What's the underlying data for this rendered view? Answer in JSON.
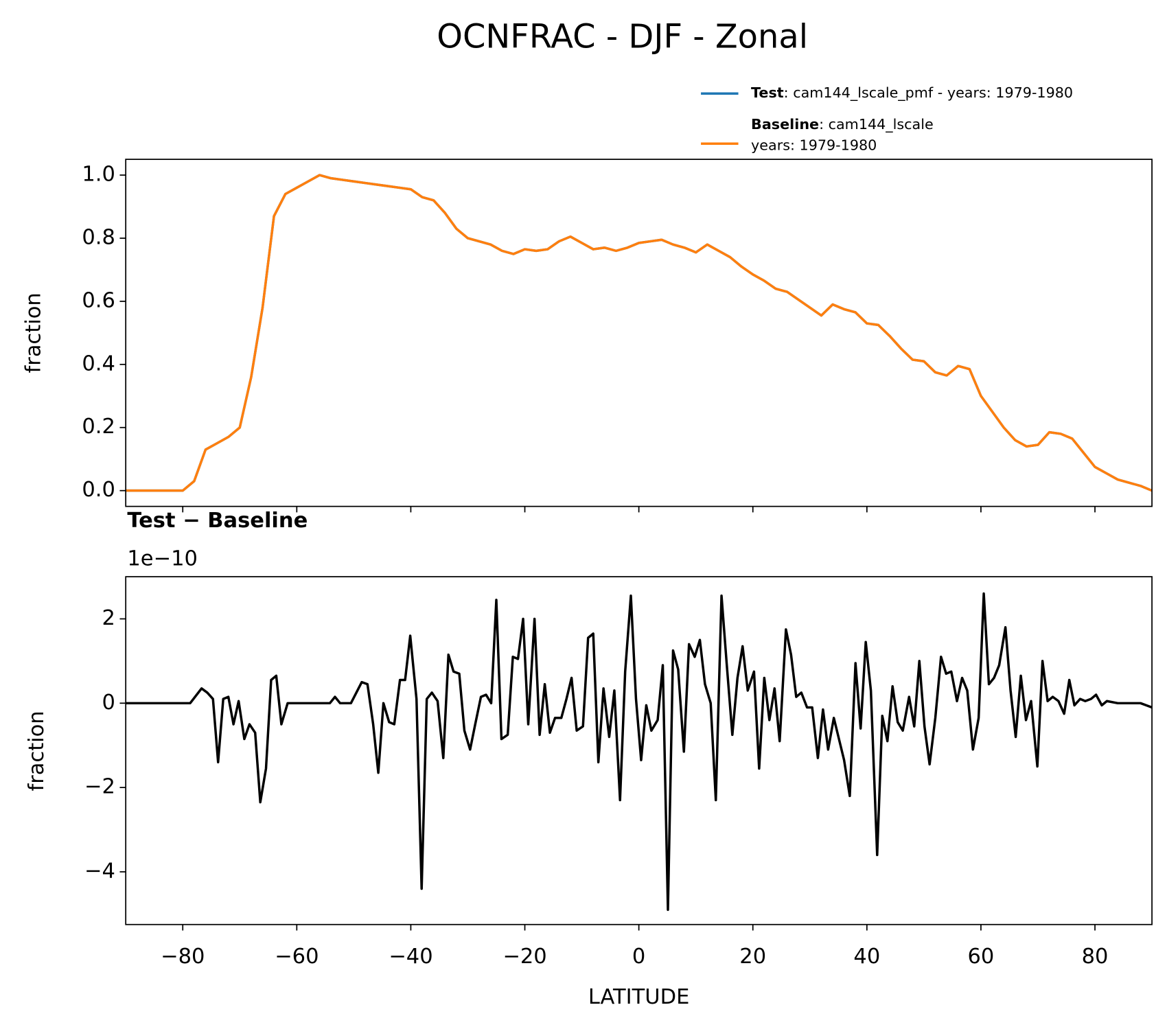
{
  "chart_data": [
    {
      "type": "line",
      "title": "OCNFRAC - DJF - Zonal",
      "ylabel": "fraction",
      "x": [
        -90,
        -88,
        -86,
        -84,
        -82,
        -80,
        -78,
        -76,
        -74,
        -72,
        -70,
        -68,
        -66,
        -64,
        -62,
        -60,
        -58,
        -56,
        -54,
        -52,
        -50,
        -48,
        -46,
        -44,
        -42,
        -40,
        -38,
        -36,
        -34,
        -32,
        -30,
        -28,
        -26,
        -24,
        -22,
        -20,
        -18,
        -16,
        -14,
        -12,
        -10,
        -8,
        -6,
        -4,
        -2,
        0,
        2,
        4,
        6,
        8,
        10,
        12,
        14,
        16,
        18,
        20,
        22,
        24,
        26,
        28,
        30,
        32,
        34,
        36,
        38,
        40,
        42,
        44,
        46,
        48,
        50,
        52,
        54,
        56,
        58,
        60,
        62,
        64,
        66,
        68,
        70,
        72,
        74,
        76,
        78,
        80,
        82,
        84,
        86,
        88,
        90
      ],
      "series": [
        {
          "name": "Test",
          "description": [
            ": cam144_lscale_pmf - years: 1979-1980"
          ],
          "color": "#1f77b4",
          "values": [
            0,
            0,
            0,
            0,
            0,
            0,
            0.03,
            0.13,
            0.15,
            0.17,
            0.2,
            0.36,
            0.58,
            0.87,
            0.94,
            0.96,
            0.98,
            1.0,
            0.99,
            0.985,
            0.98,
            0.975,
            0.97,
            0.965,
            0.96,
            0.955,
            0.93,
            0.92,
            0.88,
            0.83,
            0.8,
            0.79,
            0.78,
            0.76,
            0.75,
            0.765,
            0.76,
            0.765,
            0.79,
            0.805,
            0.785,
            0.765,
            0.77,
            0.76,
            0.77,
            0.785,
            0.79,
            0.795,
            0.78,
            0.77,
            0.755,
            0.78,
            0.76,
            0.74,
            0.71,
            0.685,
            0.665,
            0.64,
            0.63,
            0.605,
            0.58,
            0.555,
            0.59,
            0.575,
            0.565,
            0.53,
            0.525,
            0.49,
            0.45,
            0.415,
            0.41,
            0.375,
            0.365,
            0.395,
            0.385,
            0.3,
            0.25,
            0.2,
            0.16,
            0.14,
            0.145,
            0.185,
            0.18,
            0.165,
            0.12,
            0.075,
            0.055,
            0.035,
            0.025,
            0.015,
            0.0
          ]
        },
        {
          "name": "Baseline",
          "description": [
            ": cam144_lscale",
            "years: 1979-1980"
          ],
          "color": "#ff7f0e",
          "values": [
            0,
            0,
            0,
            0,
            0,
            0,
            0.03,
            0.13,
            0.15,
            0.17,
            0.2,
            0.36,
            0.58,
            0.87,
            0.94,
            0.96,
            0.98,
            1.0,
            0.99,
            0.985,
            0.98,
            0.975,
            0.97,
            0.965,
            0.96,
            0.955,
            0.93,
            0.92,
            0.88,
            0.83,
            0.8,
            0.79,
            0.78,
            0.76,
            0.75,
            0.765,
            0.76,
            0.765,
            0.79,
            0.805,
            0.785,
            0.765,
            0.77,
            0.76,
            0.77,
            0.785,
            0.79,
            0.795,
            0.78,
            0.77,
            0.755,
            0.78,
            0.76,
            0.74,
            0.71,
            0.685,
            0.665,
            0.64,
            0.63,
            0.605,
            0.58,
            0.555,
            0.59,
            0.575,
            0.565,
            0.53,
            0.525,
            0.49,
            0.45,
            0.415,
            0.41,
            0.375,
            0.365,
            0.395,
            0.385,
            0.3,
            0.25,
            0.2,
            0.16,
            0.14,
            0.145,
            0.185,
            0.18,
            0.165,
            0.12,
            0.075,
            0.055,
            0.035,
            0.025,
            0.015,
            0.0
          ]
        }
      ],
      "xlim": [
        -90,
        90
      ],
      "xticks": [
        -80,
        -60,
        -40,
        -20,
        0,
        20,
        40,
        60,
        80
      ],
      "ylim": [
        -0.05,
        1.05
      ],
      "yticks": [
        {
          "value": 0,
          "label": "0.0"
        },
        0.2,
        0.4,
        0.6,
        0.8,
        {
          "value": 1,
          "label": "1.0"
        }
      ],
      "legend": "upper right"
    },
    {
      "type": "line",
      "title": "Test − Baseline",
      "offset_text": "1e−10",
      "xlabel": "LATITUDE",
      "ylabel": "fraction",
      "x": [
        -90,
        -78.7,
        -76.7,
        -75.7,
        -74.7,
        -73.8,
        -72.9,
        -72,
        -71.1,
        -70.2,
        -69.2,
        -68.3,
        -67.3,
        -66.4,
        -65.4,
        -64.5,
        -63.6,
        -62.7,
        -61.6,
        -54.2,
        -53.3,
        -52.4,
        -50.5,
        -48.6,
        -47.6,
        -46.6,
        -45.7,
        -44.8,
        -43.8,
        -42.9,
        -41.9,
        -41,
        -40.1,
        -39,
        -38.1,
        -37.2,
        -36.3,
        -35.3,
        -34.3,
        -33.4,
        -32.5,
        -31.5,
        -30.6,
        -29.6,
        -28.7,
        -27.7,
        -26.8,
        -25.9,
        -25,
        -24.1,
        -23,
        -22.1,
        -21.2,
        -20.3,
        -19.4,
        -18.3,
        -17.4,
        -16.5,
        -15.6,
        -14.7,
        -13.6,
        -12.7,
        -11.8,
        -10.9,
        -9.8,
        -8.9,
        -8,
        -7.1,
        -6.2,
        -5.2,
        -4.3,
        -3.3,
        -2.4,
        -1.4,
        -0.5,
        0.4,
        1.3,
        2.2,
        3.3,
        4.2,
        5.1,
        6,
        6.9,
        7.9,
        8.8,
        9.8,
        10.7,
        11.6,
        12.6,
        13.5,
        14.5,
        15.4,
        16.4,
        17.3,
        18.2,
        19.1,
        20.2,
        21.1,
        22,
        22.9,
        23.8,
        24.7,
        25.8,
        26.7,
        27.6,
        28.5,
        29.5,
        30.4,
        31.4,
        32.3,
        33.2,
        34.2,
        35.1,
        36,
        37,
        38,
        38.9,
        39.8,
        40.7,
        41.8,
        42.7,
        43.6,
        44.5,
        45.4,
        46.3,
        47.4,
        48.3,
        49.2,
        50.1,
        51,
        52,
        53,
        53.9,
        54.8,
        55.8,
        56.7,
        57.6,
        58.6,
        59.6,
        60.5,
        61.4,
        62.3,
        63.2,
        64.3,
        65.2,
        66.1,
        67,
        67.9,
        68.8,
        69.9,
        70.8,
        71.7,
        72.6,
        73.6,
        74.6,
        75.5,
        76.4,
        77.4,
        78.3,
        79.3,
        80.2,
        81.2,
        82.1,
        84,
        86,
        88,
        89,
        90
      ],
      "series": [
        {
          "color": "#000000",
          "values": [
            0,
            0,
            0.35,
            0.25,
            0.1,
            -1.4,
            0.1,
            0.15,
            -0.5,
            0.05,
            -0.85,
            -0.5,
            -0.7,
            -2.35,
            -1.55,
            0.55,
            0.65,
            -0.5,
            0,
            0,
            0.15,
            0,
            0,
            0.5,
            0.45,
            -0.5,
            -1.65,
            0,
            -0.45,
            -0.5,
            0.55,
            0.55,
            1.6,
            0.1,
            -4.4,
            0.1,
            0.25,
            0.05,
            -1.3,
            1.15,
            0.75,
            0.7,
            -0.65,
            -1.1,
            -0.5,
            0.15,
            0.2,
            0,
            2.45,
            -0.85,
            -0.75,
            1.1,
            1.05,
            2.0,
            -0.5,
            2.0,
            -0.75,
            0.45,
            -0.7,
            -0.35,
            -0.35,
            0.1,
            0.6,
            -0.65,
            -0.55,
            1.55,
            1.65,
            -1.4,
            0.35,
            -0.8,
            0.3,
            -2.3,
            0.75,
            2.55,
            0.1,
            -1.35,
            -0.05,
            -0.65,
            -0.4,
            0.9,
            -4.9,
            1.25,
            0.8,
            -1.15,
            1.4,
            1.1,
            1.5,
            0.45,
            0,
            -2.3,
            2.55,
            0.95,
            -0.75,
            0.6,
            1.35,
            0.3,
            0.75,
            -1.55,
            0.6,
            -0.4,
            0.35,
            -0.9,
            1.75,
            1.15,
            0.15,
            0.25,
            -0.1,
            -0.1,
            -1.3,
            -0.15,
            -1.1,
            -0.35,
            -0.85,
            -1.35,
            -2.2,
            0.95,
            -0.6,
            1.45,
            0.3,
            -3.6,
            -0.3,
            -0.9,
            0.4,
            -0.45,
            -0.65,
            0.15,
            -0.55,
            1.0,
            -0.55,
            -1.45,
            -0.35,
            1.1,
            0.7,
            0.75,
            0.05,
            0.6,
            0.3,
            -1.1,
            -0.35,
            2.6,
            0.45,
            0.6,
            0.9,
            1.8,
            0.3,
            -0.8,
            0.65,
            -0.4,
            0.05,
            -1.5,
            1.0,
            0.05,
            0.15,
            0.05,
            -0.25,
            0.55,
            -0.05,
            0.1,
            0.05,
            0.1,
            0.2,
            -0.05,
            0.05,
            0.0,
            0.0,
            0.0,
            -0.05,
            -0.1
          ]
        }
      ],
      "xlim": [
        -90,
        90
      ],
      "xticks": [
        {
          "value": -80,
          "label": "−80"
        },
        {
          "value": -60,
          "label": "−60"
        },
        {
          "value": -40,
          "label": "−40"
        },
        {
          "value": -20,
          "label": "−20"
        },
        0,
        20,
        40,
        60,
        80
      ],
      "ylim": [
        -5.25,
        3
      ],
      "yticks": [
        {
          "value": -4,
          "label": "−4"
        },
        {
          "value": -2,
          "label": "−2"
        },
        0,
        2
      ]
    }
  ]
}
